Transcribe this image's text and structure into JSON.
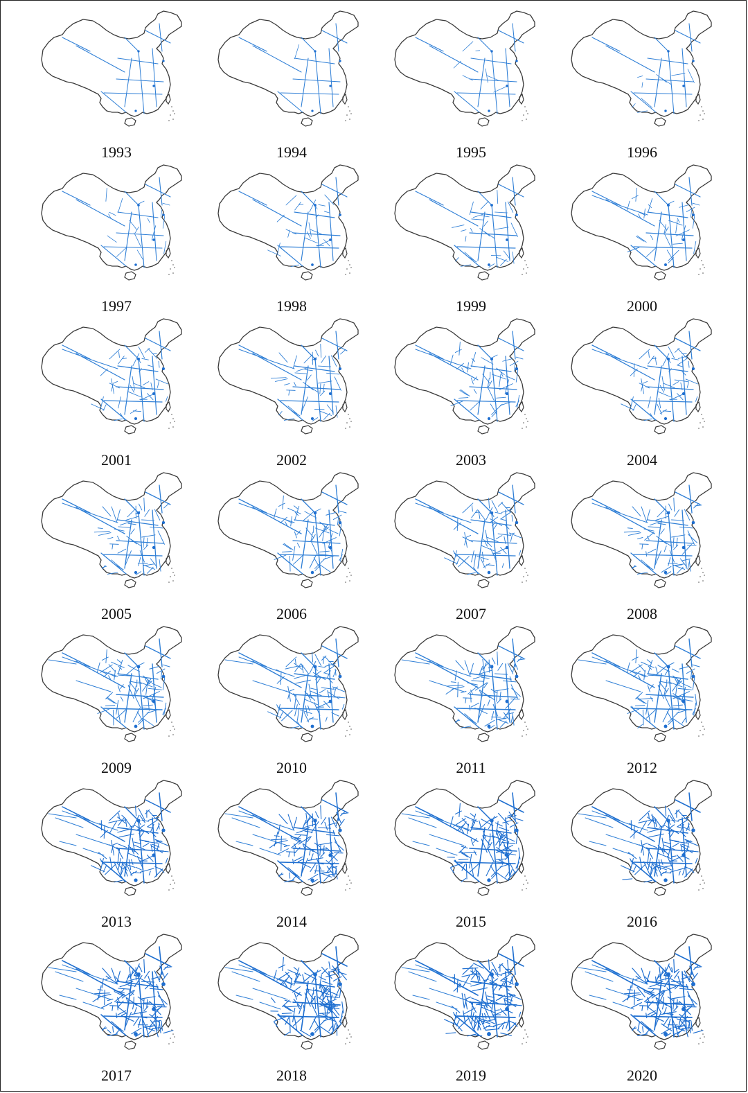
{
  "figure": {
    "colors": {
      "outline": "#3a3a3a",
      "network": "#2f7fd6",
      "network_dense": "#1f6fd0",
      "background": "#ffffff"
    },
    "panels": [
      {
        "year": "1993",
        "density": 0.08
      },
      {
        "year": "1994",
        "density": 0.09
      },
      {
        "year": "1995",
        "density": 0.13
      },
      {
        "year": "1996",
        "density": 0.15
      },
      {
        "year": "1997",
        "density": 0.2
      },
      {
        "year": "1998",
        "density": 0.24
      },
      {
        "year": "1999",
        "density": 0.28
      },
      {
        "year": "2000",
        "density": 0.32
      },
      {
        "year": "2001",
        "density": 0.35
      },
      {
        "year": "2002",
        "density": 0.37
      },
      {
        "year": "2003",
        "density": 0.39
      },
      {
        "year": "2004",
        "density": 0.41
      },
      {
        "year": "2005",
        "density": 0.45
      },
      {
        "year": "2006",
        "density": 0.48
      },
      {
        "year": "2007",
        "density": 0.5
      },
      {
        "year": "2008",
        "density": 0.52
      },
      {
        "year": "2009",
        "density": 0.58
      },
      {
        "year": "2010",
        "density": 0.61
      },
      {
        "year": "2011",
        "density": 0.63
      },
      {
        "year": "2012",
        "density": 0.65
      },
      {
        "year": "2013",
        "density": 0.75
      },
      {
        "year": "2014",
        "density": 0.78
      },
      {
        "year": "2015",
        "density": 0.8
      },
      {
        "year": "2016",
        "density": 0.82
      },
      {
        "year": "2017",
        "density": 0.9
      },
      {
        "year": "2018",
        "density": 0.93
      },
      {
        "year": "2019",
        "density": 0.96
      },
      {
        "year": "2020",
        "density": 1.0
      }
    ]
  }
}
